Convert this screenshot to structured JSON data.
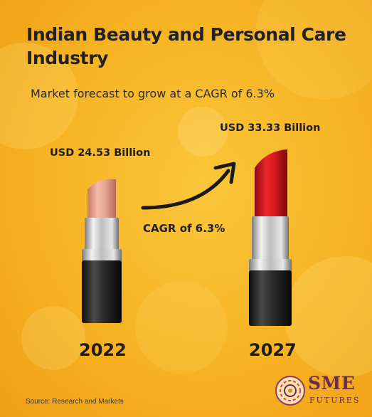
{
  "title": "Indian Beauty and Personal Care Industry",
  "subtitle": "Market forecast to grow at a CAGR of 6.3%",
  "source": "Source: Research and Markets",
  "logo": {
    "sme": "SME",
    "futures": "FUTURES"
  },
  "cagr_label": "CAGR of 6.3%",
  "colors": {
    "background": "#f6b323",
    "lipstick_2022": "#e8a591",
    "lipstick_2027": "#d7191c",
    "logo": "#6b2a5c"
  },
  "icons": [
    "lipstick-2022-icon",
    "lipstick-2027-icon",
    "growth-arrow-icon",
    "sme-futures-logo-icon"
  ],
  "chart_data": {
    "type": "bar",
    "title": "Indian Beauty and Personal Care Industry",
    "subtitle": "Market forecast to grow at a CAGR of 6.3%",
    "categories": [
      "2022",
      "2027"
    ],
    "values": [
      24.53,
      33.33
    ],
    "value_labels": [
      "USD 24.53 Billion",
      "USD 33.33 Billion"
    ],
    "unit": "USD Billion",
    "cagr": 6.3,
    "annotation": "CAGR of 6.3%"
  }
}
